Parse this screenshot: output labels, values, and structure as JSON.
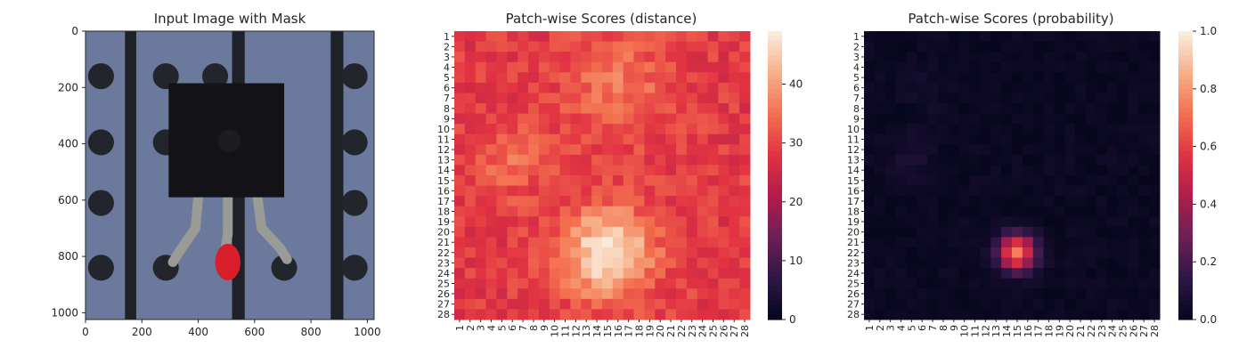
{
  "chart_data": [
    {
      "type": "image",
      "title": "Input Image with Mask",
      "xlim": [
        0,
        1024
      ],
      "ylim": [
        1024,
        0
      ],
      "xticks": [
        0,
        200,
        400,
        600,
        800,
        1000
      ],
      "yticks": [
        0,
        200,
        400,
        600,
        800,
        1000
      ],
      "image": {
        "background_color": "#6b7a9c",
        "stripe_color": "#1e2228",
        "hole_color": "#22262c",
        "component_color": "#131317",
        "lead_color": "#9a9a96",
        "mask_color": "#d81e2a",
        "stripes_x": [
          [
            140,
            180
          ],
          [
            520,
            565
          ],
          [
            870,
            915
          ]
        ],
        "holes": [
          [
            55,
            160
          ],
          [
            285,
            160
          ],
          [
            460,
            160
          ],
          [
            955,
            160
          ],
          [
            55,
            395
          ],
          [
            285,
            395
          ],
          [
            955,
            395
          ],
          [
            55,
            610
          ],
          [
            955,
            610
          ],
          [
            55,
            840
          ],
          [
            285,
            840
          ],
          [
            705,
            840
          ],
          [
            955,
            840
          ]
        ],
        "component_body": [
          295,
          185,
          705,
          590
        ],
        "mask_center": [
          505,
          820
        ],
        "mask_radius": [
          45,
          65
        ]
      }
    },
    {
      "type": "heatmap",
      "title": "Patch-wise Scores (distance)",
      "rows": 28,
      "cols": 28,
      "row_labels": [
        "1",
        "2",
        "3",
        "4",
        "5",
        "6",
        "7",
        "8",
        "9",
        "10",
        "11",
        "12",
        "13",
        "14",
        "15",
        "16",
        "17",
        "18",
        "19",
        "20",
        "21",
        "22",
        "23",
        "24",
        "25",
        "26",
        "27",
        "28"
      ],
      "col_labels": [
        "1",
        "2",
        "3",
        "4",
        "5",
        "6",
        "7",
        "8",
        "9",
        "10",
        "11",
        "12",
        "13",
        "14",
        "15",
        "16",
        "17",
        "18",
        "19",
        "20",
        "21",
        "22",
        "23",
        "24",
        "25",
        "26",
        "27",
        "28"
      ],
      "vmin": 0,
      "vmax": 49,
      "colorbar_ticks": [
        0,
        10,
        20,
        30,
        40
      ],
      "colormap": "rocket",
      "base_value": 29,
      "hotspots": [
        {
          "row": 22,
          "col": 15,
          "peak": 49,
          "spread": 3.0
        },
        {
          "row": 6,
          "col": 16,
          "peak": 36,
          "spread": 3.5
        },
        {
          "row": 13,
          "col": 6,
          "peak": 35,
          "spread": 2.5
        }
      ]
    },
    {
      "type": "heatmap",
      "title": "Patch-wise Scores (probability)",
      "rows": 28,
      "cols": 28,
      "row_labels": [
        "1",
        "2",
        "3",
        "4",
        "5",
        "6",
        "7",
        "8",
        "9",
        "10",
        "11",
        "12",
        "13",
        "14",
        "15",
        "16",
        "17",
        "18",
        "19",
        "20",
        "21",
        "22",
        "23",
        "24",
        "25",
        "26",
        "27",
        "28"
      ],
      "col_labels": [
        "1",
        "2",
        "3",
        "4",
        "5",
        "6",
        "7",
        "8",
        "9",
        "10",
        "11",
        "12",
        "13",
        "14",
        "15",
        "16",
        "17",
        "18",
        "19",
        "20",
        "21",
        "22",
        "23",
        "24",
        "25",
        "26",
        "27",
        "28"
      ],
      "vmin": 0,
      "vmax": 1.0,
      "colorbar_ticks": [
        "0.0",
        "0.2",
        "0.4",
        "0.6",
        "0.8",
        "1.0"
      ],
      "colormap": "rocket",
      "base_value": 0.03,
      "hotspots": [
        {
          "row": 22,
          "col": 15,
          "peak": 0.75,
          "spread": 1.2
        },
        {
          "row": 13,
          "col": 5,
          "peak": 0.08,
          "spread": 1.5
        },
        {
          "row": 6,
          "col": 6,
          "peak": 0.06,
          "spread": 1.5
        }
      ]
    }
  ]
}
